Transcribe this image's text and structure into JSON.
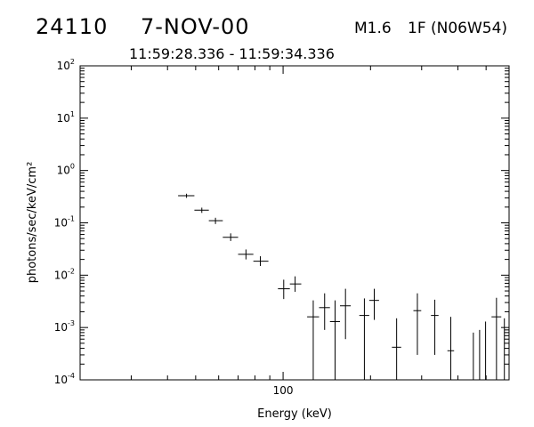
{
  "header": {
    "event_id": "24110",
    "date": "7-NOV-00",
    "flare_class": "M1.6",
    "flare_location": "1F (N06W54)",
    "time_range": "11:59:28.336 - 11:59:34.336"
  },
  "chart_data": {
    "type": "scatter",
    "title": "24110   7-NOV-00",
    "subtitle": "11:59:28.336 - 11:59:34.336",
    "xlabel": "Energy (keV)",
    "ylabel": "photons/sec/keV/cm²",
    "xscale": "log",
    "yscale": "log",
    "xlim": [
      20,
      600
    ],
    "ylim": [
      0.0001,
      100
    ],
    "grid": false,
    "x_tick_labels": [
      {
        "value": 100,
        "label": "100"
      }
    ],
    "y_tick_labels": [
      {
        "value": 100,
        "base": "10",
        "exp": "2"
      },
      {
        "value": 10,
        "base": "10",
        "exp": "1"
      },
      {
        "value": 1,
        "base": "10",
        "exp": "0"
      },
      {
        "value": 0.1,
        "base": "10",
        "exp": "-1"
      },
      {
        "value": 0.01,
        "base": "10",
        "exp": "-2"
      },
      {
        "value": 0.001,
        "base": "10",
        "exp": "-3"
      },
      {
        "value": 0.0001,
        "base": "10",
        "exp": "-4"
      }
    ],
    "series": [
      {
        "marker": "errorbar-cross",
        "points": [
          {
            "x": 46.5,
            "xlo": 43.5,
            "xhi": 49.5,
            "y": 0.33,
            "ylo": 0.3,
            "yhi": 0.36
          },
          {
            "x": 52.5,
            "xlo": 49.5,
            "xhi": 55.5,
            "y": 0.175,
            "ylo": 0.155,
            "yhi": 0.195
          },
          {
            "x": 58.5,
            "xlo": 55.5,
            "xhi": 62.0,
            "y": 0.11,
            "ylo": 0.095,
            "yhi": 0.125
          },
          {
            "x": 66.0,
            "xlo": 62.0,
            "xhi": 70.0,
            "y": 0.053,
            "ylo": 0.045,
            "yhi": 0.063
          },
          {
            "x": 74.5,
            "xlo": 70.0,
            "xhi": 79.0,
            "y": 0.025,
            "ylo": 0.02,
            "yhi": 0.031
          },
          {
            "x": 83.5,
            "xlo": 79.0,
            "xhi": 89.0,
            "y": 0.0185,
            "ylo": 0.015,
            "yhi": 0.023
          },
          {
            "x": 100.5,
            "xlo": 96.0,
            "xhi": 105.5,
            "y": 0.0055,
            "ylo": 0.0035,
            "yhi": 0.0082
          },
          {
            "x": 110.0,
            "xlo": 105.5,
            "xhi": 115.5,
            "y": 0.0068,
            "ylo": 0.0048,
            "yhi": 0.0095
          },
          {
            "x": 127.0,
            "xlo": 121.0,
            "xhi": 133.0,
            "y": 0.0016,
            "ylo": 0.0001,
            "yhi": 0.0033
          },
          {
            "x": 139.0,
            "xlo": 133.0,
            "xhi": 145.0,
            "y": 0.0024,
            "ylo": 0.0009,
            "yhi": 0.0045
          },
          {
            "x": 151.0,
            "xlo": 145.0,
            "xhi": 157.0,
            "y": 0.0013,
            "ylo": 0.0001,
            "yhi": 0.0033
          },
          {
            "x": 164.0,
            "xlo": 157.0,
            "xhi": 171.0,
            "y": 0.0026,
            "ylo": 0.0006,
            "yhi": 0.0055
          },
          {
            "x": 190.5,
            "xlo": 183.0,
            "xhi": 198.0,
            "y": 0.0017,
            "ylo": 0.0001,
            "yhi": 0.0036
          },
          {
            "x": 206.0,
            "xlo": 198.0,
            "xhi": 214.0,
            "y": 0.0033,
            "ylo": 0.0014,
            "yhi": 0.0055
          },
          {
            "x": 246.0,
            "xlo": 237.0,
            "xhi": 255.0,
            "y": 0.00042,
            "ylo": 0.0001,
            "yhi": 0.0015
          },
          {
            "x": 290.0,
            "xlo": 281.0,
            "xhi": 299.0,
            "y": 0.0021,
            "ylo": 0.0003,
            "yhi": 0.0045
          },
          {
            "x": 333.0,
            "xlo": 323.0,
            "xhi": 343.0,
            "y": 0.0017,
            "ylo": 0.0003,
            "yhi": 0.0034
          },
          {
            "x": 378.0,
            "xlo": 368.0,
            "xhi": 388.0,
            "y": 0.00036,
            "ylo": 0.0001,
            "yhi": 0.0016
          },
          {
            "x": 452.0,
            "xlo": 452.0,
            "xhi": 452.0,
            "y": 0.0002,
            "ylo": 0.0001,
            "yhi": 0.0008
          },
          {
            "x": 475.0,
            "xlo": 475.0,
            "xhi": 475.0,
            "y": 0.0002,
            "ylo": 0.0001,
            "yhi": 0.0009
          },
          {
            "x": 498.0,
            "xlo": 498.0,
            "xhi": 498.0,
            "y": 0.0003,
            "ylo": 0.0001,
            "yhi": 0.0013
          },
          {
            "x": 543.0,
            "xlo": 522.0,
            "xhi": 564.0,
            "y": 0.0016,
            "ylo": 0.0001,
            "yhi": 0.0037
          },
          {
            "x": 578.0,
            "xlo": 578.0,
            "xhi": 578.0,
            "y": 0.0007,
            "ylo": 0.0001,
            "yhi": 0.0015
          }
        ]
      }
    ]
  }
}
